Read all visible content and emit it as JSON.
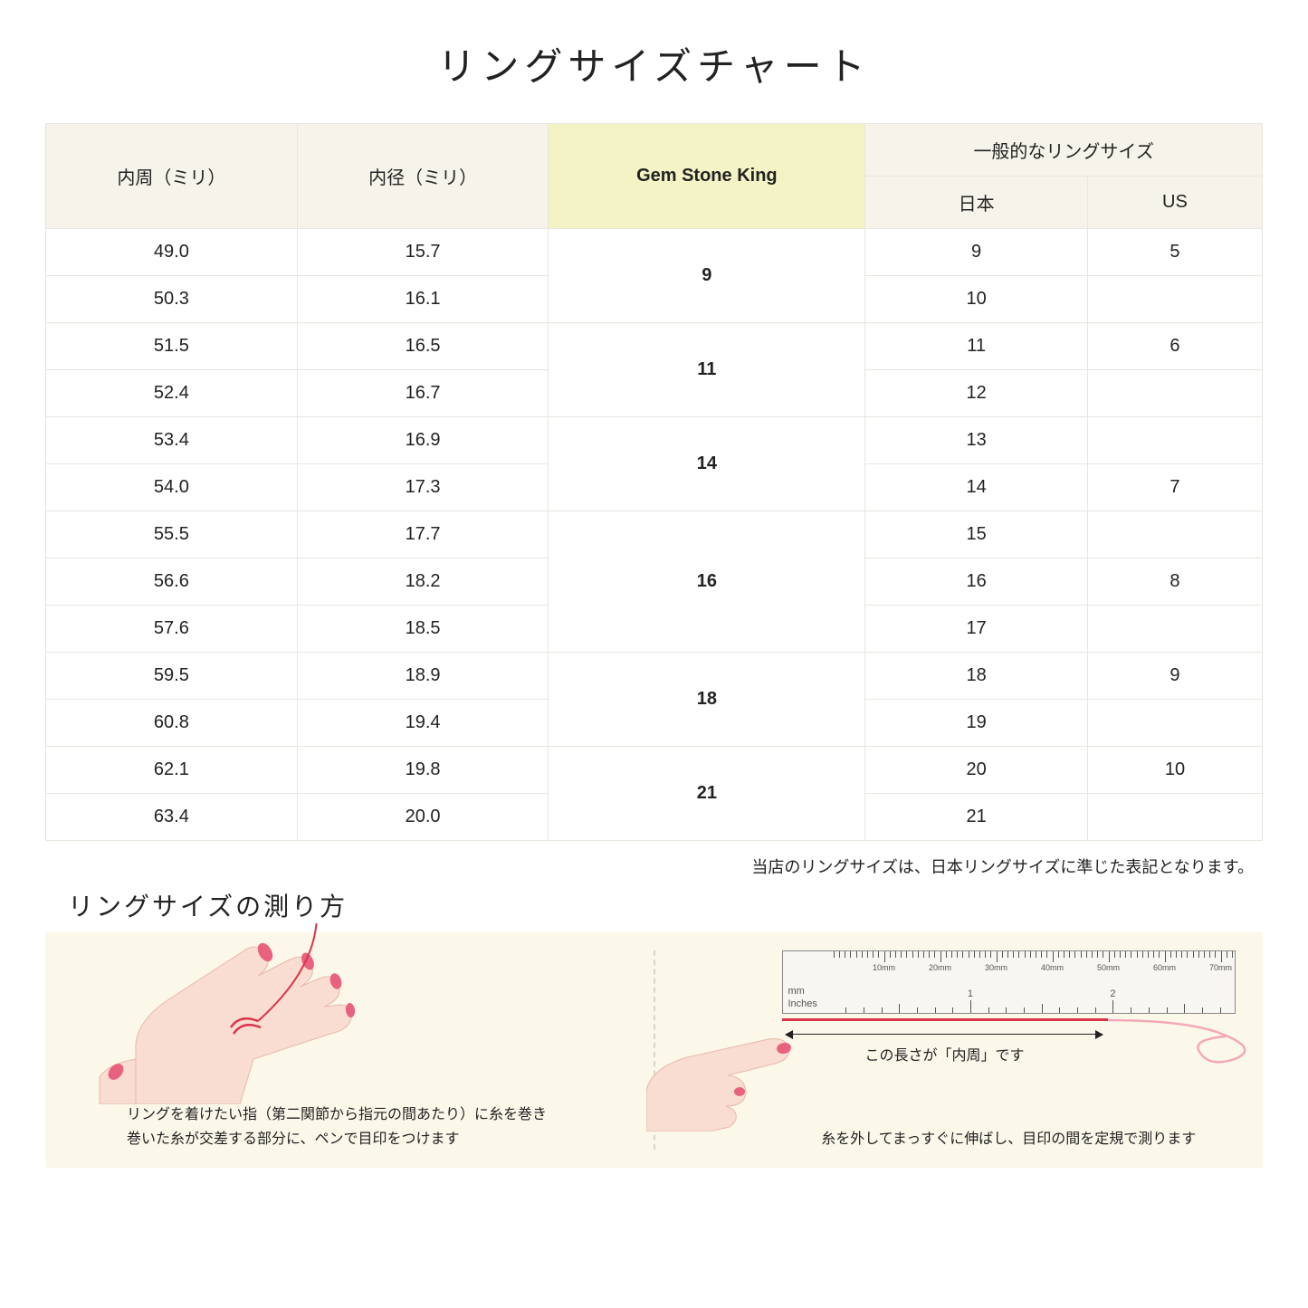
{
  "title": "リングサイズチャート",
  "headers": {
    "circumference": "内周（ミリ）",
    "diameter": "内径（ミリ）",
    "gsk": "Gem Stone King",
    "general": "一般的なリングサイズ",
    "jp": "日本",
    "us": "US"
  },
  "groups": [
    {
      "gsk": "9",
      "rows": [
        {
          "c": "49.0",
          "d": "15.7",
          "jp": "9",
          "us": "5"
        },
        {
          "c": "50.3",
          "d": "16.1",
          "jp": "10",
          "us": ""
        }
      ]
    },
    {
      "gsk": "11",
      "rows": [
        {
          "c": "51.5",
          "d": "16.5",
          "jp": "11",
          "us": "6"
        },
        {
          "c": "52.4",
          "d": "16.7",
          "jp": "12",
          "us": ""
        }
      ]
    },
    {
      "gsk": "14",
      "rows": [
        {
          "c": "53.4",
          "d": "16.9",
          "jp": "13",
          "us": ""
        },
        {
          "c": "54.0",
          "d": "17.3",
          "jp": "14",
          "us": "7"
        }
      ]
    },
    {
      "gsk": "16",
      "rows": [
        {
          "c": "55.5",
          "d": "17.7",
          "jp": "15",
          "us": ""
        },
        {
          "c": "56.6",
          "d": "18.2",
          "jp": "16",
          "us": "8"
        },
        {
          "c": "57.6",
          "d": "18.5",
          "jp": "17",
          "us": ""
        }
      ]
    },
    {
      "gsk": "18",
      "rows": [
        {
          "c": "59.5",
          "d": "18.9",
          "jp": "18",
          "us": "9"
        },
        {
          "c": "60.8",
          "d": "19.4",
          "jp": "19",
          "us": ""
        }
      ]
    },
    {
      "gsk": "21",
      "rows": [
        {
          "c": "62.1",
          "d": "19.8",
          "jp": "20",
          "us": "10"
        },
        {
          "c": "63.4",
          "d": "20.0",
          "jp": "21",
          "us": ""
        }
      ]
    }
  ],
  "note": "当店のリングサイズは、日本リングサイズに準じた表記となります。",
  "howto_title": "リングサイズの測り方",
  "howto_left_text": "リングを着けたい指（第二関節から指元の間あたり）に糸を巻き\n巻いた糸が交差する部分に、ペンで目印をつけます",
  "howto_right_text": "糸を外してまっすぐに伸ばし、目印の間を定規で測ります",
  "arrow_label": "この長さが「内周」です",
  "ruler": {
    "mm_label": "mm",
    "in_label": "Inches",
    "mm_ticks": [
      "10mm",
      "20mm",
      "30mm",
      "40mm",
      "50mm",
      "60mm",
      "70mm"
    ],
    "in_ticks": [
      "1",
      "2"
    ]
  },
  "colors": {
    "header_bg": "#f5f3ea",
    "gsk_bg": "#f4f3c5",
    "border": "#e8e6de",
    "howto_bg": "#fbf8ea",
    "skin": "#f9dcd2",
    "skin_dark": "#f0c3b5",
    "nail": "#e8627f",
    "thread": "#d9344a"
  }
}
